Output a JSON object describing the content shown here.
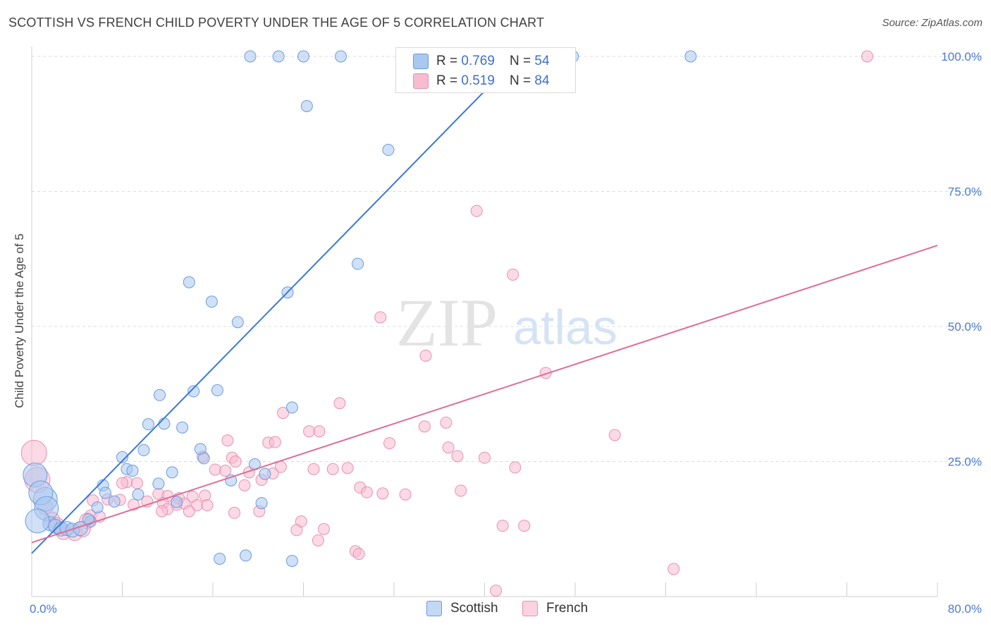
{
  "title": "SCOTTISH VS FRENCH CHILD POVERTY UNDER THE AGE OF 5 CORRELATION CHART",
  "source": "Source: ZipAtlas.com",
  "watermark": {
    "zip": "ZIP",
    "atlas": "atlas"
  },
  "legend_top": {
    "rows": [
      {
        "r_label": "R = ",
        "r_value": "0.769",
        "n_label": "N = ",
        "n_value": "54"
      },
      {
        "r_label": "R = ",
        "r_value": "0.519",
        "n_label": "N = ",
        "n_value": "84"
      }
    ]
  },
  "legend_bottom": {
    "items": [
      {
        "label": "Scottish"
      },
      {
        "label": "French"
      }
    ]
  },
  "colors": {
    "scottish_fill": "#a9c8f0",
    "scottish_stroke": "#6a9be0",
    "scottish_line": "#3b78d8",
    "french_fill": "#f7bcd0",
    "french_stroke": "#ea8fb0",
    "french_line": "#e06c98",
    "tick_text": "#4a7bd0",
    "grid": "#dcdcdc"
  },
  "chart_data": {
    "type": "scatter",
    "title": "SCOTTISH VS FRENCH CHILD POVERTY UNDER THE AGE OF 5 CORRELATION CHART",
    "xlabel": "",
    "ylabel": "Child Poverty Under the Age of 5",
    "xlim": [
      0,
      80
    ],
    "ylim": [
      0,
      102
    ],
    "x_tick_labels": [
      "0.0%",
      "80.0%"
    ],
    "y_ticks": [
      25,
      50,
      75,
      100
    ],
    "y_tick_labels": [
      "25.0%",
      "50.0%",
      "75.0%",
      "100.0%"
    ],
    "grid": true,
    "legend_position": "top-center",
    "series": [
      {
        "name": "Scottish",
        "r": 0.769,
        "n": 54,
        "trend": {
          "x": [
            0,
            43
          ],
          "y": [
            8,
            100
          ]
        },
        "points": [
          {
            "x": 19.3,
            "y": 100
          },
          {
            "x": 21.8,
            "y": 100
          },
          {
            "x": 24.0,
            "y": 100
          },
          {
            "x": 27.3,
            "y": 100
          },
          {
            "x": 47.8,
            "y": 100
          },
          {
            "x": 58.2,
            "y": 100
          },
          {
            "x": 24.3,
            "y": 90.8
          },
          {
            "x": 31.5,
            "y": 82.7
          },
          {
            "x": 28.8,
            "y": 61.6
          },
          {
            "x": 13.9,
            "y": 58.2
          },
          {
            "x": 22.6,
            "y": 56.3
          },
          {
            "x": 15.9,
            "y": 54.6
          },
          {
            "x": 18.2,
            "y": 50.8
          },
          {
            "x": 11.3,
            "y": 37.3
          },
          {
            "x": 14.3,
            "y": 38.0
          },
          {
            "x": 16.4,
            "y": 38.2
          },
          {
            "x": 10.3,
            "y": 31.9
          },
          {
            "x": 11.7,
            "y": 32.0
          },
          {
            "x": 13.3,
            "y": 31.3
          },
          {
            "x": 23.0,
            "y": 35.0
          },
          {
            "x": 9.9,
            "y": 27.1
          },
          {
            "x": 14.9,
            "y": 27.3
          },
          {
            "x": 8.0,
            "y": 25.8
          },
          {
            "x": 15.2,
            "y": 25.6
          },
          {
            "x": 8.4,
            "y": 23.6
          },
          {
            "x": 8.9,
            "y": 23.3
          },
          {
            "x": 12.4,
            "y": 23.0
          },
          {
            "x": 19.7,
            "y": 24.5
          },
          {
            "x": 17.6,
            "y": 21.5
          },
          {
            "x": 11.2,
            "y": 20.9
          },
          {
            "x": 6.3,
            "y": 20.6
          },
          {
            "x": 6.5,
            "y": 19.2
          },
          {
            "x": 9.4,
            "y": 18.9
          },
          {
            "x": 12.8,
            "y": 17.5
          },
          {
            "x": 20.6,
            "y": 22.7
          },
          {
            "x": 20.3,
            "y": 17.3
          },
          {
            "x": 1.2,
            "y": 18.0
          },
          {
            "x": 7.3,
            "y": 17.6
          },
          {
            "x": 5.8,
            "y": 16.5
          },
          {
            "x": 0.3,
            "y": 22.5
          },
          {
            "x": 0.8,
            "y": 19.2
          },
          {
            "x": 1.3,
            "y": 16.3
          },
          {
            "x": 1.6,
            "y": 13.5
          },
          {
            "x": 2.1,
            "y": 13.0
          },
          {
            "x": 2.6,
            "y": 12.5
          },
          {
            "x": 3.1,
            "y": 12.6
          },
          {
            "x": 3.6,
            "y": 12.3
          },
          {
            "x": 4.3,
            "y": 12.6
          },
          {
            "x": 5.2,
            "y": 13.9
          },
          {
            "x": 5.0,
            "y": 14.3
          },
          {
            "x": 16.6,
            "y": 7.0
          },
          {
            "x": 18.9,
            "y": 7.6
          },
          {
            "x": 23.0,
            "y": 6.6
          },
          {
            "x": 0.5,
            "y": 14.0
          }
        ]
      },
      {
        "name": "French",
        "r": 0.519,
        "n": 84,
        "trend": {
          "x": [
            0,
            80
          ],
          "y": [
            10,
            65
          ]
        },
        "points": [
          {
            "x": 40.4,
            "y": 100
          },
          {
            "x": 73.8,
            "y": 100
          },
          {
            "x": 39.3,
            "y": 71.4
          },
          {
            "x": 42.5,
            "y": 59.6
          },
          {
            "x": 30.8,
            "y": 51.7
          },
          {
            "x": 34.8,
            "y": 44.6
          },
          {
            "x": 45.4,
            "y": 41.4
          },
          {
            "x": 27.2,
            "y": 35.8
          },
          {
            "x": 22.2,
            "y": 34.0
          },
          {
            "x": 36.6,
            "y": 32.2
          },
          {
            "x": 34.7,
            "y": 31.5
          },
          {
            "x": 24.5,
            "y": 30.6
          },
          {
            "x": 25.4,
            "y": 30.6
          },
          {
            "x": 51.5,
            "y": 29.9
          },
          {
            "x": 17.3,
            "y": 28.9
          },
          {
            "x": 20.9,
            "y": 28.5
          },
          {
            "x": 21.5,
            "y": 28.6
          },
          {
            "x": 31.6,
            "y": 28.4
          },
          {
            "x": 36.8,
            "y": 27.6
          },
          {
            "x": 37.6,
            "y": 26.0
          },
          {
            "x": 15.1,
            "y": 25.9
          },
          {
            "x": 17.7,
            "y": 25.7
          },
          {
            "x": 18.0,
            "y": 25.0
          },
          {
            "x": 40.0,
            "y": 25.7
          },
          {
            "x": 22.0,
            "y": 24.0
          },
          {
            "x": 24.9,
            "y": 23.6
          },
          {
            "x": 26.6,
            "y": 23.6
          },
          {
            "x": 27.9,
            "y": 23.8
          },
          {
            "x": 42.7,
            "y": 23.9
          },
          {
            "x": 16.2,
            "y": 23.5
          },
          {
            "x": 17.1,
            "y": 23.3
          },
          {
            "x": 19.2,
            "y": 23.0
          },
          {
            "x": 21.3,
            "y": 22.8
          },
          {
            "x": 20.3,
            "y": 21.6
          },
          {
            "x": 8.4,
            "y": 21.2
          },
          {
            "x": 8.0,
            "y": 21.0
          },
          {
            "x": 9.3,
            "y": 21.0
          },
          {
            "x": 18.8,
            "y": 20.6
          },
          {
            "x": 29.0,
            "y": 20.2
          },
          {
            "x": 29.6,
            "y": 19.3
          },
          {
            "x": 31.0,
            "y": 19.1
          },
          {
            "x": 37.9,
            "y": 19.6
          },
          {
            "x": 33.0,
            "y": 18.9
          },
          {
            "x": 11.2,
            "y": 19.0
          },
          {
            "x": 12.0,
            "y": 18.6
          },
          {
            "x": 13.0,
            "y": 18.2
          },
          {
            "x": 14.2,
            "y": 18.5
          },
          {
            "x": 15.3,
            "y": 18.7
          },
          {
            "x": 5.4,
            "y": 17.8
          },
          {
            "x": 6.7,
            "y": 18.0
          },
          {
            "x": 7.8,
            "y": 17.9
          },
          {
            "x": 10.2,
            "y": 17.6
          },
          {
            "x": 11.6,
            "y": 17.3
          },
          {
            "x": 12.8,
            "y": 17.0
          },
          {
            "x": 13.5,
            "y": 17.2
          },
          {
            "x": 14.6,
            "y": 16.9
          },
          {
            "x": 9.0,
            "y": 17.0
          },
          {
            "x": 15.5,
            "y": 16.9
          },
          {
            "x": 12.0,
            "y": 16.2
          },
          {
            "x": 11.5,
            "y": 15.8
          },
          {
            "x": 13.9,
            "y": 15.8
          },
          {
            "x": 17.9,
            "y": 15.5
          },
          {
            "x": 20.1,
            "y": 15.8
          },
          {
            "x": 5.2,
            "y": 15.0
          },
          {
            "x": 4.9,
            "y": 14.0
          },
          {
            "x": 6.0,
            "y": 14.8
          },
          {
            "x": 23.8,
            "y": 13.9
          },
          {
            "x": 41.6,
            "y": 13.1
          },
          {
            "x": 43.5,
            "y": 13.1
          },
          {
            "x": 23.4,
            "y": 12.3
          },
          {
            "x": 25.8,
            "y": 12.5
          },
          {
            "x": 25.3,
            "y": 10.4
          },
          {
            "x": 28.6,
            "y": 8.4
          },
          {
            "x": 28.9,
            "y": 7.9
          },
          {
            "x": 56.7,
            "y": 5.1
          },
          {
            "x": 41.0,
            "y": 1.1
          },
          {
            "x": 0.2,
            "y": 26.6
          },
          {
            "x": 0.5,
            "y": 21.6
          },
          {
            "x": 1.2,
            "y": 16.6
          },
          {
            "x": 1.8,
            "y": 14.2
          },
          {
            "x": 2.8,
            "y": 12.0
          },
          {
            "x": 3.8,
            "y": 11.8
          },
          {
            "x": 4.5,
            "y": 12.5
          },
          {
            "x": 2.2,
            "y": 13.2
          }
        ]
      }
    ]
  }
}
